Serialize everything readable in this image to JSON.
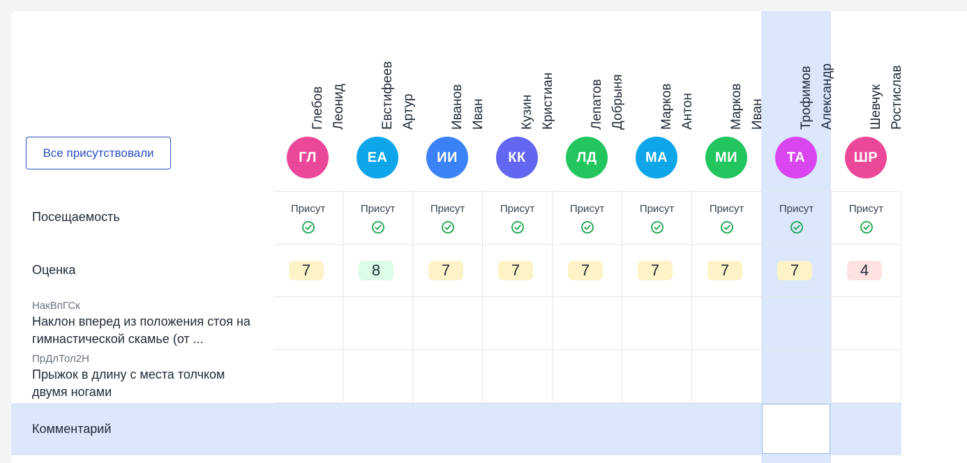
{
  "all_present_button": "Все присутствовали",
  "rows": {
    "attendance": "Посещаемость",
    "grade": "Оценка",
    "comment": "Комментарий"
  },
  "exercises": [
    {
      "code": "НакВпГСк",
      "title": "Наклон вперед из положения стоя на гимнастической скамье (от ..."
    },
    {
      "code": "ПрДлТол2Н",
      "title": "Прыжок в длину с места толчком двумя ногами"
    }
  ],
  "students": [
    {
      "last": "Глебов",
      "first": "Леонид",
      "initials": "ГЛ",
      "color": "#ec4899",
      "attendance": "Присут",
      "grade": "7",
      "grade_bg": "#fef3c7"
    },
    {
      "last": "Евстифеев",
      "first": "Артур",
      "initials": "ЕА",
      "color": "#0ea5e9",
      "attendance": "Присут",
      "grade": "8",
      "grade_bg": "#dcfce7"
    },
    {
      "last": "Иванов",
      "first": "Иван",
      "initials": "ИИ",
      "color": "#3b82f6",
      "attendance": "Присут",
      "grade": "7",
      "grade_bg": "#fef3c7"
    },
    {
      "last": "Кузин",
      "first": "Кристиан",
      "initials": "КК",
      "color": "#6366f1",
      "attendance": "Присут",
      "grade": "7",
      "grade_bg": "#fef3c7"
    },
    {
      "last": "Лепатов",
      "first": "Добрыня",
      "initials": "ЛД",
      "color": "#22c55e",
      "attendance": "Присут",
      "grade": "7",
      "grade_bg": "#fef3c7"
    },
    {
      "last": "Марков",
      "first": "Антон",
      "initials": "МА",
      "color": "#0ea5e9",
      "attendance": "Присут",
      "grade": "7",
      "grade_bg": "#fef3c7"
    },
    {
      "last": "Марков",
      "first": "Иван",
      "initials": "МИ",
      "color": "#22c55e",
      "attendance": "Присут",
      "grade": "7",
      "grade_bg": "#fef3c7"
    },
    {
      "last": "Трофимов",
      "first": "Александр",
      "initials": "ТА",
      "color": "#d946ef",
      "attendance": "Присут",
      "grade": "7",
      "grade_bg": "#fef3c7"
    },
    {
      "last": "Шевчук",
      "first": "Ростислав",
      "initials": "ШР",
      "color": "#ec4899",
      "attendance": "Присут",
      "grade": "4",
      "grade_bg": "#fee2e2"
    }
  ],
  "icons": {
    "present": "check-circle-icon"
  },
  "colors": {
    "accent": "#2b4fbf",
    "present": "#16a34a",
    "highlight": "#dbe8fc"
  }
}
